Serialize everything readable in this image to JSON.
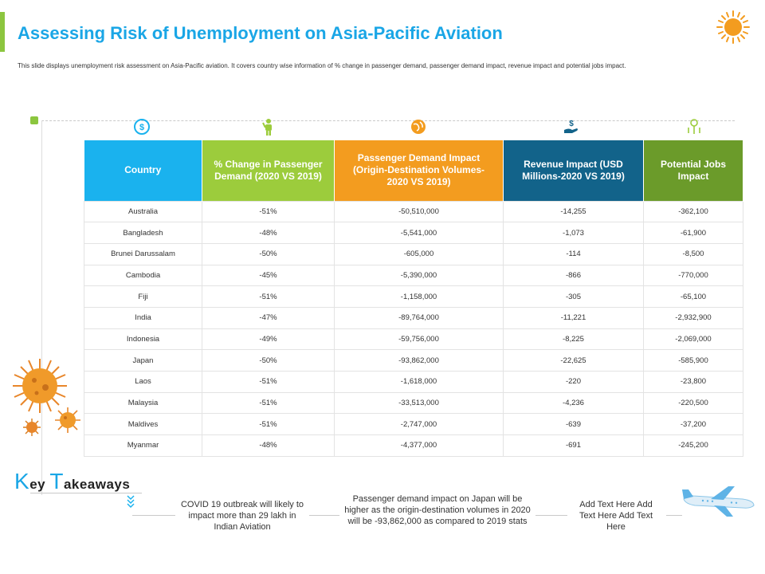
{
  "header": {
    "title": "Assessing Risk of Unemployment on Asia-Pacific Aviation",
    "subtitle": "This slide displays unemployment risk assessment on Asia-Pacific aviation. It covers country wise information of % change in passenger demand, passenger demand impact, revenue impact and potential jobs impact."
  },
  "icons": [
    "globe-dollar-icon",
    "worker-icon",
    "globe-icon",
    "dollar-hand-icon",
    "jobs-icon",
    "sun-icon",
    "virus-icon",
    "airplane-icon"
  ],
  "colors": {
    "country": "#1ab2ee",
    "change": "#9ccc3c",
    "demand": "#f39c1f",
    "revenue": "#12638a",
    "jobs": "#6b9b2a",
    "title": "#1aa6e6",
    "accent": "#8cc63f"
  },
  "table": {
    "headers": [
      "Country",
      "% Change in Passenger Demand (2020 VS 2019)",
      "Passenger Demand Impact (Origin-Destination Volumes-2020 VS 2019)",
      "Revenue Impact (USD Millions-2020 VS 2019)",
      "Potential Jobs Impact"
    ],
    "rows": [
      [
        "Australia",
        "-51%",
        "-50,510,000",
        "-14,255",
        "-362,100"
      ],
      [
        "Bangladesh",
        "-48%",
        "-5,541,000",
        "-1,073",
        "-61,900"
      ],
      [
        "Brunei Darussalam",
        "-50%",
        "-605,000",
        "-114",
        "-8,500"
      ],
      [
        "Cambodia",
        "-45%",
        "-5,390,000",
        "-866",
        "-770,000"
      ],
      [
        "Fiji",
        "-51%",
        "-1,158,000",
        "-305",
        "-65,100"
      ],
      [
        "India",
        "-47%",
        "-89,764,000",
        "-11,221",
        "-2,932,900"
      ],
      [
        "Indonesia",
        "-49%",
        "-59,756,000",
        "-8,225",
        "-2,069,000"
      ],
      [
        "Japan",
        "-50%",
        "-93,862,000",
        "-22,625",
        "-585,900"
      ],
      [
        "Laos",
        "-51%",
        "-1,618,000",
        "-220",
        "-23,800"
      ],
      [
        "Malaysia",
        "-51%",
        "-33,513,000",
        "-4,236",
        "-220,500"
      ],
      [
        "Maldives",
        "-51%",
        "-2,747,000",
        "-639",
        "-37,200"
      ],
      [
        "Myanmar",
        "-48%",
        "-4,377,000",
        "-691",
        "-245,200"
      ]
    ]
  },
  "takeaways": {
    "title_k": "K",
    "title_ey": "ey ",
    "title_t": "T",
    "title_rest": "akeaways",
    "items": [
      "COVID 19 outbreak will likely to impact more than 29 lakh in Indian Aviation",
      "Passenger demand impact on Japan will be higher as the origin-destination volumes in 2020 will be -93,862,000 as compared to 2019 stats",
      "Add Text Here Add Text Here Add Text Here"
    ]
  }
}
